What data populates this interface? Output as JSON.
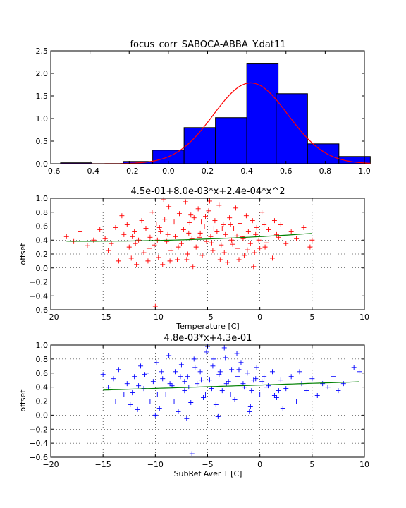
{
  "chart_data": [
    {
      "type": "histogram",
      "title": "focus_corr_SABOCA-ABBA_Y.dat11",
      "xlabel": "",
      "ylabel": "",
      "xlim": [
        -0.6,
        1.0
      ],
      "ylim": [
        0.0,
        2.5
      ],
      "xticks": [
        "−0.6",
        "−0.4",
        "−0.2",
        "0.0",
        "0.2",
        "0.4",
        "0.6",
        "0.8",
        "1.0"
      ],
      "yticks": [
        "0.0",
        "0.5",
        "1.0",
        "1.5",
        "2.0",
        "2.5"
      ],
      "bins": [
        -0.55,
        -0.39,
        -0.23,
        -0.08,
        0.08,
        0.24,
        0.4,
        0.55,
        0.71,
        0.87
      ],
      "values": [
        0.02,
        0.0,
        0.05,
        0.3,
        0.8,
        1.02,
        2.21,
        1.55,
        0.44,
        0.16
      ],
      "bar_color": "#0000ff",
      "fit": {
        "type": "gaussian",
        "amplitude": 1.79,
        "mean": 0.42,
        "sigma": 0.19,
        "color": "#ff0000"
      },
      "grid": false
    },
    {
      "type": "scatter",
      "title": "4.5e-01+8.0e-03*x+2.4e-04*x^2",
      "xlabel": "Temperature [C]",
      "ylabel": "offset",
      "xlim": [
        -20,
        10
      ],
      "ylim": [
        -0.6,
        1.0
      ],
      "xticks": [
        "−20",
        "−15",
        "−10",
        "−5",
        "0",
        "5",
        "10"
      ],
      "yticks": [
        "−0.6",
        "−0.4",
        "−0.2",
        "0.0",
        "0.2",
        "0.4",
        "0.6",
        "0.8",
        "1.0"
      ],
      "marker": "+",
      "marker_color": "#ff0000",
      "fit": {
        "type": "poly2",
        "coeffs": [
          0.45,
          0.008,
          0.00024
        ],
        "xrange": [
          -18.5,
          5
        ],
        "color": "#008000"
      },
      "points": [
        [
          -18.5,
          0.45
        ],
        [
          -17.8,
          0.38
        ],
        [
          -17.2,
          0.52
        ],
        [
          -16.5,
          0.32
        ],
        [
          -15.9,
          0.4
        ],
        [
          -15.3,
          0.55
        ],
        [
          -14.8,
          0.42
        ],
        [
          -14.2,
          0.35
        ],
        [
          -13.8,
          0.58
        ],
        [
          -13.5,
          0.1
        ],
        [
          -13.2,
          0.75
        ],
        [
          -13.0,
          0.48
        ],
        [
          -12.7,
          0.62
        ],
        [
          -12.5,
          0.3
        ],
        [
          -12.3,
          0.14
        ],
        [
          -12.0,
          0.52
        ],
        [
          -11.8,
          0.05
        ],
        [
          -11.6,
          0.4
        ],
        [
          -11.3,
          0.68
        ],
        [
          -11.1,
          0.22
        ],
        [
          -10.9,
          0.57
        ],
        [
          -10.7,
          0.1
        ],
        [
          -10.5,
          0.44
        ],
        [
          -10.3,
          0.8
        ],
        [
          -10.1,
          0.33
        ],
        [
          -9.9,
          0.63
        ],
        [
          -9.7,
          0.15
        ],
        [
          -9.5,
          0.52
        ],
        [
          -9.3,
          0.05
        ],
        [
          -9.1,
          0.7
        ],
        [
          -8.9,
          0.38
        ],
        [
          -8.7,
          0.88
        ],
        [
          -8.5,
          0.25
        ],
        [
          -8.3,
          0.6
        ],
        [
          -8.1,
          0.45
        ],
        [
          -7.9,
          0.12
        ],
        [
          -7.7,
          0.78
        ],
        [
          -7.5,
          0.35
        ],
        [
          -7.3,
          0.55
        ],
        [
          -7.1,
          0.95
        ],
        [
          -6.9,
          0.2
        ],
        [
          -6.7,
          0.65
        ],
        [
          -6.5,
          0.42
        ],
        [
          -6.3,
          0.72
        ],
        [
          -6.1,
          0.3
        ],
        [
          -5.9,
          0.85
        ],
        [
          -5.7,
          0.5
        ],
        [
          -5.5,
          0.18
        ],
        [
          -5.3,
          0.6
        ],
        [
          -5.1,
          0.38
        ],
        [
          -4.9,
          0.82
        ],
        [
          -4.7,
          0.45
        ],
        [
          -4.5,
          0.25
        ],
        [
          -4.3,
          0.68
        ],
        [
          -4.1,
          0.52
        ],
        [
          -3.9,
          0.9
        ],
        [
          -3.7,
          0.33
        ],
        [
          -3.5,
          0.62
        ],
        [
          -3.3,
          0.48
        ],
        [
          -3.1,
          0.08
        ],
        [
          -2.9,
          0.72
        ],
        [
          -2.7,
          0.4
        ],
        [
          -2.5,
          0.56
        ],
        [
          -2.3,
          0.86
        ],
        [
          -2.1,
          0.28
        ],
        [
          -1.9,
          0.64
        ],
        [
          -1.7,
          0.45
        ],
        [
          -1.5,
          0.18
        ],
        [
          -1.3,
          0.75
        ],
        [
          -1.1,
          0.52
        ],
        [
          -0.9,
          0.35
        ],
        [
          -0.7,
          0.68
        ],
        [
          -0.5,
          0.22
        ],
        [
          -0.3,
          0.58
        ],
        [
          -0.1,
          0.4
        ],
        [
          0.2,
          0.8
        ],
        [
          0.5,
          0.3
        ],
        [
          0.8,
          0.55
        ],
        [
          1.2,
          0.14
        ],
        [
          1.6,
          0.48
        ],
        [
          2.0,
          0.62
        ],
        [
          2.5,
          0.35
        ],
        [
          3.0,
          0.52
        ],
        [
          3.5,
          0.42
        ],
        [
          4.2,
          0.58
        ],
        [
          5.0,
          0.4
        ],
        [
          -10.0,
          -0.55
        ],
        [
          -9.2,
          0.98
        ],
        [
          -6.4,
          0.02
        ],
        [
          -4.8,
          0.96
        ],
        [
          -3.4,
          0.22
        ],
        [
          -2.0,
          0.12
        ],
        [
          -0.6,
          0.02
        ],
        [
          1.4,
          0.68
        ],
        [
          4.8,
          0.3
        ],
        [
          -14.5,
          0.25
        ],
        [
          -11.9,
          0.35
        ],
        [
          -9.8,
          0.4
        ],
        [
          -8.8,
          0.48
        ],
        [
          -7.8,
          0.3
        ],
        [
          -6.8,
          0.5
        ],
        [
          -5.8,
          0.44
        ],
        [
          -4.6,
          0.36
        ],
        [
          -3.6,
          0.56
        ],
        [
          -2.6,
          0.34
        ],
        [
          -1.6,
          0.42
        ],
        [
          -0.4,
          0.48
        ],
        [
          0.6,
          0.36
        ],
        [
          1.8,
          0.44
        ],
        [
          -12.2,
          0.45
        ],
        [
          -10.6,
          0.28
        ],
        [
          -8.6,
          0.1
        ],
        [
          -7.0,
          0.12
        ],
        [
          -5.6,
          0.66
        ],
        [
          -3.8,
          0.12
        ],
        [
          -2.2,
          0.46
        ],
        [
          0.0,
          0.28
        ],
        [
          -9.6,
          0.58
        ],
        [
          -8.2,
          0.66
        ],
        [
          -6.6,
          0.76
        ],
        [
          -5.2,
          0.74
        ],
        [
          -4.4,
          0.56
        ],
        [
          -2.8,
          0.62
        ],
        [
          -1.2,
          0.26
        ],
        [
          0.4,
          0.62
        ]
      ],
      "grid": true
    },
    {
      "type": "scatter",
      "title": "4.8e-03*x+4.3e-01",
      "xlabel": "SubRef Aver T [C]",
      "ylabel": "offset",
      "xlim": [
        -20,
        10
      ],
      "ylim": [
        -0.6,
        1.0
      ],
      "xticks": [
        "−20",
        "−15",
        "−10",
        "−5",
        "0",
        "5",
        "10"
      ],
      "yticks": [
        "−0.6",
        "−0.4",
        "−0.2",
        "0.0",
        "0.2",
        "0.4",
        "0.6",
        "0.8",
        "1.0"
      ],
      "marker": "+",
      "marker_color": "#0000ff",
      "fit": {
        "type": "poly1",
        "coeffs": [
          0.43,
          0.0048
        ],
        "xrange": [
          -15,
          9.5
        ],
        "color": "#008000"
      },
      "points": [
        [
          -15.0,
          0.58
        ],
        [
          -14.5,
          0.4
        ],
        [
          -14.0,
          0.52
        ],
        [
          -13.5,
          0.65
        ],
        [
          -13.0,
          0.3
        ],
        [
          -12.7,
          0.45
        ],
        [
          -12.4,
          0.15
        ],
        [
          -12.0,
          0.55
        ],
        [
          -11.7,
          0.08
        ],
        [
          -11.4,
          0.7
        ],
        [
          -11.1,
          0.38
        ],
        [
          -10.8,
          0.6
        ],
        [
          -10.5,
          0.2
        ],
        [
          -10.2,
          0.48
        ],
        [
          -9.9,
          0.75
        ],
        [
          -9.6,
          0.1
        ],
        [
          -9.3,
          0.52
        ],
        [
          -9.0,
          0.3
        ],
        [
          -8.7,
          0.85
        ],
        [
          -8.4,
          0.42
        ],
        [
          -8.1,
          0.62
        ],
        [
          -7.8,
          0.05
        ],
        [
          -7.5,
          0.72
        ],
        [
          -7.2,
          0.35
        ],
        [
          -6.9,
          0.55
        ],
        [
          -6.6,
          0.18
        ],
        [
          -6.3,
          0.8
        ],
        [
          -6.0,
          0.45
        ],
        [
          -5.7,
          0.62
        ],
        [
          -5.4,
          0.25
        ],
        [
          -5.1,
          0.9
        ],
        [
          -4.8,
          0.5
        ],
        [
          -4.5,
          0.7
        ],
        [
          -4.2,
          0.15
        ],
        [
          -3.9,
          0.58
        ],
        [
          -3.6,
          0.35
        ],
        [
          -3.3,
          0.82
        ],
        [
          -3.0,
          0.48
        ],
        [
          -2.7,
          0.65
        ],
        [
          -2.4,
          0.22
        ],
        [
          -2.1,
          0.55
        ],
        [
          -1.8,
          0.75
        ],
        [
          -1.5,
          0.4
        ],
        [
          -1.2,
          0.6
        ],
        [
          -0.9,
          0.12
        ],
        [
          -0.6,
          0.5
        ],
        [
          -0.3,
          0.68
        ],
        [
          0.0,
          0.3
        ],
        [
          0.4,
          0.55
        ],
        [
          0.8,
          0.42
        ],
        [
          1.2,
          0.62
        ],
        [
          1.6,
          0.25
        ],
        [
          2.0,
          0.5
        ],
        [
          2.5,
          0.38
        ],
        [
          3.0,
          0.55
        ],
        [
          3.5,
          0.2
        ],
        [
          4.0,
          0.45
        ],
        [
          4.5,
          0.35
        ],
        [
          5.0,
          0.52
        ],
        [
          5.5,
          0.28
        ],
        [
          6.0,
          0.45
        ],
        [
          6.5,
          0.4
        ],
        [
          7.0,
          0.55
        ],
        [
          7.5,
          0.35
        ],
        [
          8.0,
          0.45
        ],
        [
          9.0,
          0.68
        ],
        [
          9.5,
          0.62
        ],
        [
          -6.5,
          -0.55
        ],
        [
          -5.0,
          0.98
        ],
        [
          -3.4,
          0.96
        ],
        [
          -2.2,
          0.88
        ],
        [
          -10.0,
          0.0
        ],
        [
          -7.0,
          -0.05
        ],
        [
          -4.0,
          -0.02
        ],
        [
          -1.0,
          0.05
        ],
        [
          2.2,
          0.1
        ],
        [
          -13.8,
          0.2
        ],
        [
          -12.2,
          0.32
        ],
        [
          -11.0,
          0.58
        ],
        [
          -9.8,
          0.3
        ],
        [
          -8.6,
          0.45
        ],
        [
          -7.6,
          0.55
        ],
        [
          -6.8,
          0.4
        ],
        [
          -5.6,
          0.5
        ],
        [
          -4.6,
          0.38
        ],
        [
          -3.8,
          0.62
        ],
        [
          -2.8,
          0.3
        ],
        [
          -1.6,
          0.45
        ],
        [
          -0.4,
          0.52
        ],
        [
          0.6,
          0.4
        ],
        [
          1.8,
          0.35
        ],
        [
          3.8,
          0.62
        ],
        [
          -11.6,
          0.42
        ],
        [
          -9.4,
          0.62
        ],
        [
          -8.2,
          0.2
        ],
        [
          -7.2,
          0.48
        ],
        [
          -6.2,
          0.68
        ],
        [
          -5.2,
          0.3
        ],
        [
          -4.4,
          0.8
        ],
        [
          -3.2,
          0.45
        ],
        [
          -2.0,
          0.65
        ],
        [
          -0.8,
          0.35
        ],
        [
          0.2,
          0.48
        ],
        [
          1.4,
          0.28
        ]
      ],
      "grid": true
    }
  ]
}
